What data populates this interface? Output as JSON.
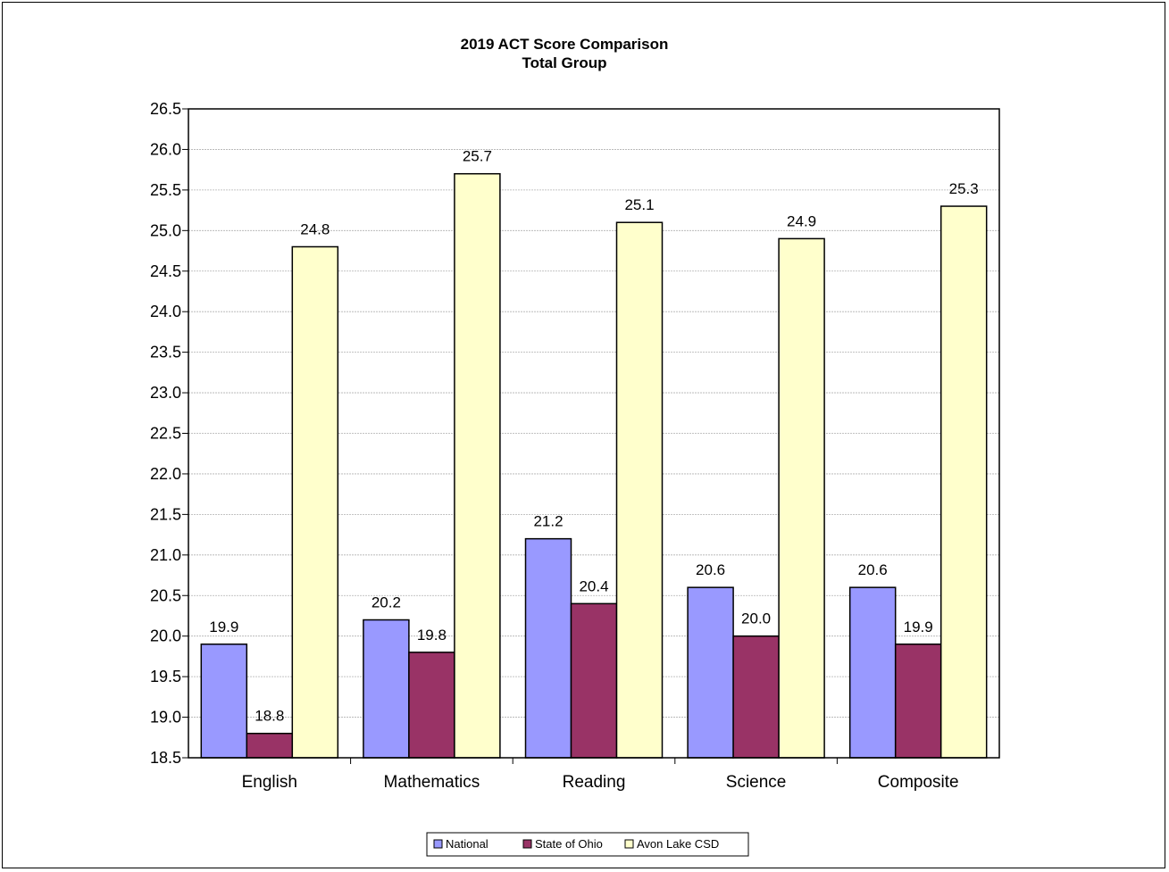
{
  "chart_data": {
    "type": "bar",
    "title": "2019 ACT Score Comparison",
    "subtitle": "Total Group",
    "xlabel": "",
    "ylabel": "",
    "categories": [
      "English",
      "Mathematics",
      "Reading",
      "Science",
      "Composite"
    ],
    "series": [
      {
        "name": "National",
        "color": "#9999ff",
        "values": [
          19.9,
          20.2,
          21.2,
          20.6,
          20.6
        ]
      },
      {
        "name": "State of Ohio",
        "color": "#993366",
        "values": [
          18.8,
          19.8,
          20.4,
          20.0,
          19.9
        ]
      },
      {
        "name": "Avon Lake CSD",
        "color": "#ffffcc",
        "values": [
          24.8,
          25.7,
          25.1,
          24.9,
          25.3
        ]
      }
    ],
    "ylim": [
      18.5,
      26.5
    ],
    "ytick_step": 0.5,
    "yticks": [
      "18.5",
      "19.0",
      "19.5",
      "20.0",
      "20.5",
      "21.0",
      "21.5",
      "22.0",
      "22.5",
      "23.0",
      "23.5",
      "24.0",
      "24.5",
      "25.0",
      "25.5",
      "26.0",
      "26.5"
    ],
    "grid": true,
    "legend_position": "bottom"
  }
}
